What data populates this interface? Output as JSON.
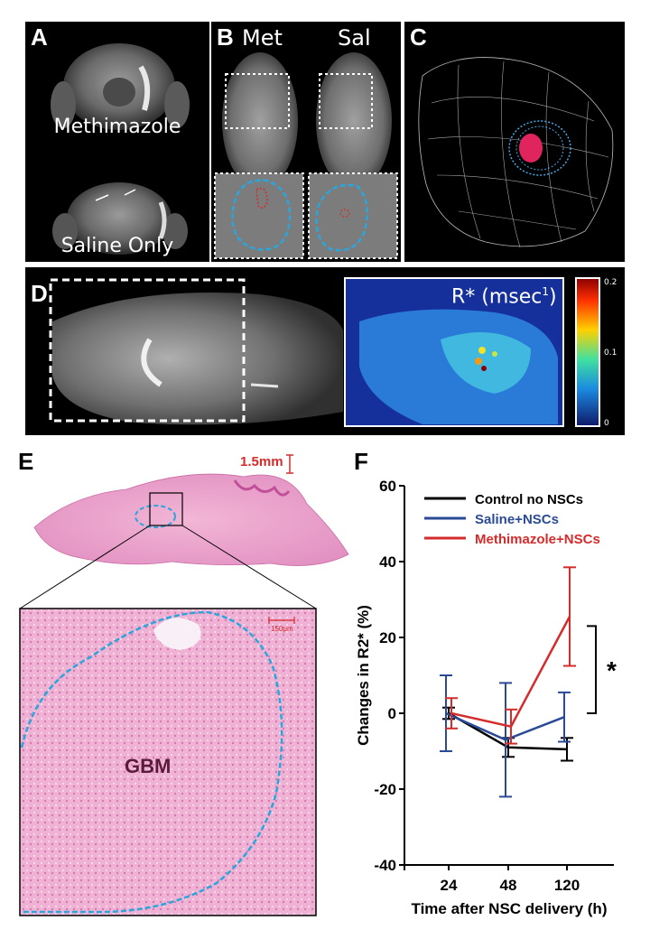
{
  "panels": {
    "a": {
      "label": "A",
      "top_caption": "Methimazole",
      "bottom_caption": "Saline Only"
    },
    "b": {
      "label": "B",
      "left_header": "Met",
      "right_header": "Sal"
    },
    "c": {
      "label": "C"
    },
    "d": {
      "label": "D",
      "map_title": "R* (msec",
      "map_title_sup": "1",
      "map_title_close": ")",
      "colorbar_ticks": [
        "0.2",
        "0.1",
        "0"
      ]
    },
    "e": {
      "label": "E",
      "scale_top": "1.5mm",
      "scale_zoom": "150μm",
      "region_label": "GBM"
    },
    "f": {
      "label": "F",
      "significance": "*"
    }
  },
  "chart_data": {
    "type": "line",
    "title": "",
    "xlabel": "Time after NSC delivery (h)",
    "ylabel": "Changes in R2* (%)",
    "categories": [
      "24",
      "48",
      "120"
    ],
    "ylim": [
      -40,
      60
    ],
    "yticks": [
      "60",
      "40",
      "20",
      "0",
      "-20",
      "-40"
    ],
    "grid": false,
    "legend_position": "top-right",
    "colors": {
      "control": "#000000",
      "saline": "#2b4a96",
      "methimazole": "#d62b2b"
    },
    "series": [
      {
        "name": "Control no NSCs",
        "values": [
          0,
          -9,
          -9.5
        ],
        "err": [
          1.5,
          2.5,
          3.0
        ]
      },
      {
        "name": "Saline+NSCs",
        "values": [
          0,
          -7,
          -1
        ],
        "err": [
          10,
          15,
          6.5
        ]
      },
      {
        "name": "Methimazole+NSCs",
        "values": [
          0,
          -3.5,
          25.5
        ],
        "err": [
          4,
          4.5,
          13
        ]
      }
    ]
  }
}
